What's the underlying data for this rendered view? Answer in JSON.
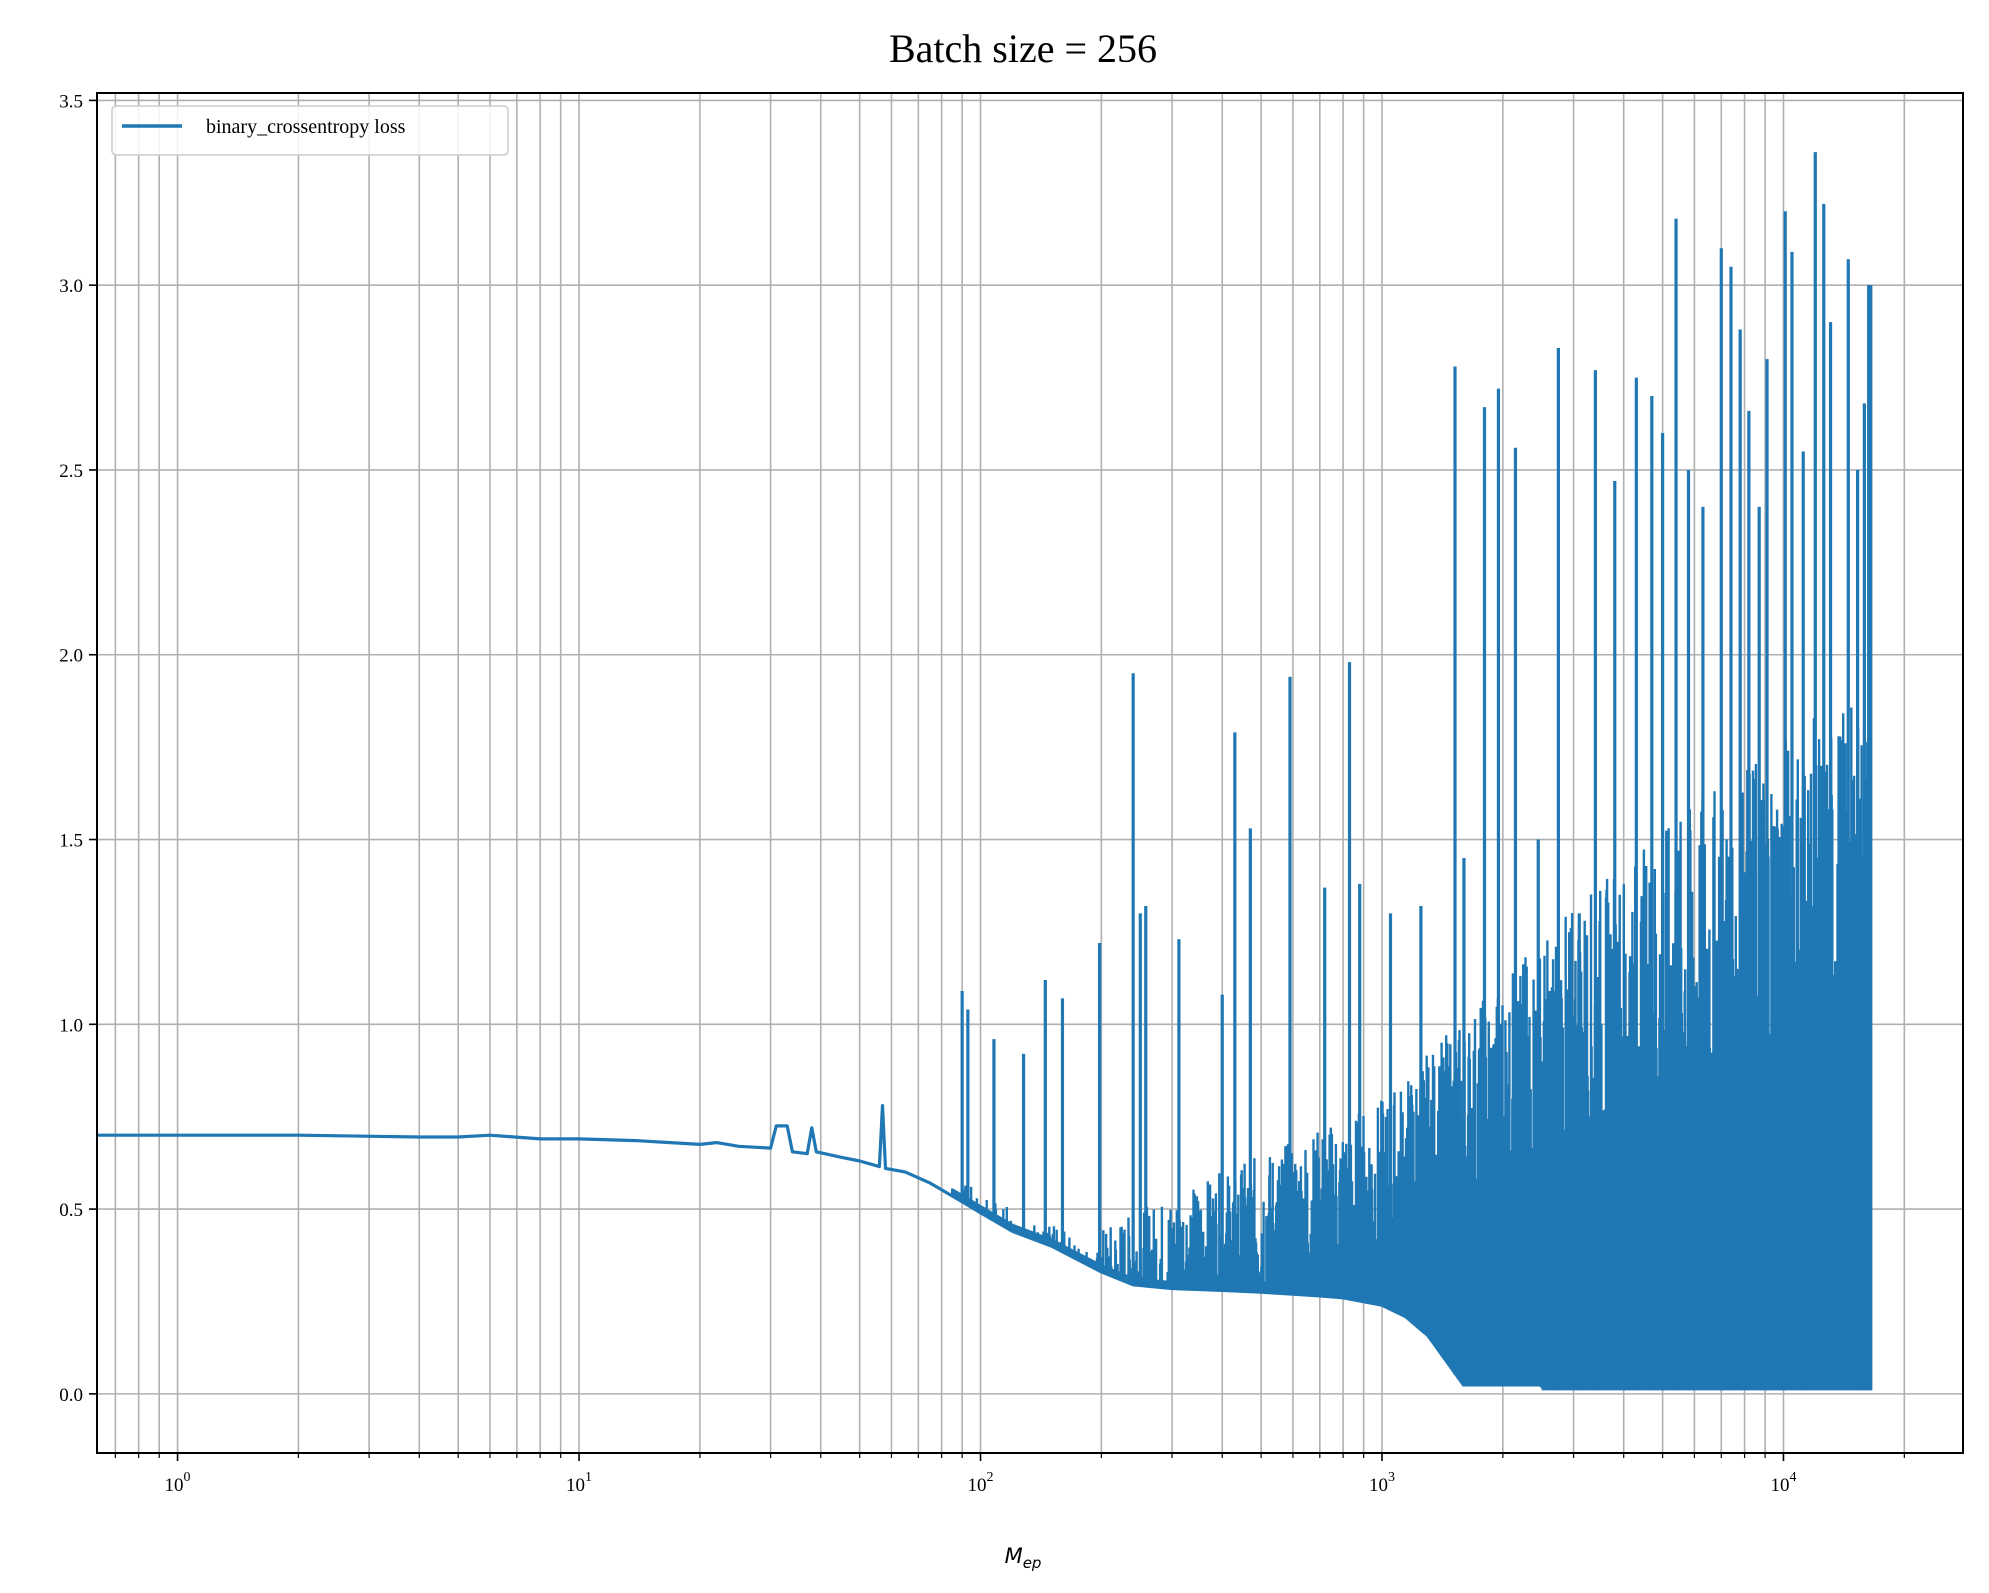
{
  "chart_data": {
    "type": "line",
    "title": "Batch size = 256",
    "xlabel": {
      "base": "M",
      "subscript": "ep"
    },
    "ylabel": "",
    "xscale": "log",
    "xlim": [
      0.63,
      28000
    ],
    "ylim": [
      -0.16,
      3.52
    ],
    "grid": true,
    "legend_position": "top-left",
    "xticks": [
      {
        "base": "10",
        "exp": "0",
        "value": 1
      },
      {
        "base": "10",
        "exp": "1",
        "value": 10
      },
      {
        "base": "10",
        "exp": "2",
        "value": 100
      },
      {
        "base": "10",
        "exp": "3",
        "value": 1000
      },
      {
        "base": "10",
        "exp": "4",
        "value": 10000
      }
    ],
    "yticks": [
      {
        "label": "0.0",
        "value": 0.0
      },
      {
        "label": "0.5",
        "value": 0.5
      },
      {
        "label": "1.0",
        "value": 1.0
      },
      {
        "label": "1.5",
        "value": 1.5
      },
      {
        "label": "2.0",
        "value": 2.0
      },
      {
        "label": "2.5",
        "value": 2.5
      },
      {
        "label": "3.0",
        "value": 3.0
      },
      {
        "label": "3.5",
        "value": 3.5
      }
    ],
    "series": [
      {
        "name": "binary_crossentropy loss",
        "color": "#1f77b4",
        "trend_points": [
          [
            0.63,
            0.7
          ],
          [
            1,
            0.7
          ],
          [
            2,
            0.7
          ],
          [
            4,
            0.695
          ],
          [
            5,
            0.695
          ],
          [
            6,
            0.7
          ],
          [
            8,
            0.69
          ],
          [
            10,
            0.69
          ],
          [
            14,
            0.685
          ],
          [
            20,
            0.675
          ],
          [
            22,
            0.68
          ],
          [
            25,
            0.67
          ],
          [
            30,
            0.665
          ],
          [
            31,
            0.725
          ],
          [
            33,
            0.725
          ],
          [
            34,
            0.655
          ],
          [
            37,
            0.65
          ],
          [
            38,
            0.72
          ],
          [
            39,
            0.655
          ],
          [
            45,
            0.64
          ],
          [
            50,
            0.63
          ],
          [
            56,
            0.615
          ],
          [
            57,
            0.78
          ],
          [
            58,
            0.61
          ],
          [
            65,
            0.6
          ],
          [
            75,
            0.57
          ],
          [
            90,
            0.52
          ],
          [
            100,
            0.49
          ],
          [
            120,
            0.44
          ],
          [
            150,
            0.4
          ],
          [
            200,
            0.33
          ],
          [
            240,
            0.295
          ],
          [
            300,
            0.285
          ],
          [
            400,
            0.28
          ],
          [
            500,
            0.275
          ],
          [
            600,
            0.27
          ],
          [
            700,
            0.265
          ],
          [
            800,
            0.26
          ],
          [
            1000,
            0.24
          ],
          [
            1300,
            0.18
          ],
          [
            1600,
            0.08
          ],
          [
            2000,
            0.04
          ],
          [
            3000,
            0.025
          ],
          [
            5000,
            0.02
          ],
          [
            10000,
            0.015
          ],
          [
            16500,
            0.015
          ]
        ],
        "spikes": [
          [
            90,
            1.09
          ],
          [
            93,
            1.04
          ],
          [
            108,
            0.96
          ],
          [
            128,
            0.92
          ],
          [
            145,
            1.12
          ],
          [
            160,
            1.07
          ],
          [
            198,
            1.22
          ],
          [
            240,
            1.95
          ],
          [
            250,
            1.3
          ],
          [
            258,
            1.32
          ],
          [
            312,
            1.23
          ],
          [
            400,
            1.08
          ],
          [
            430,
            1.79
          ],
          [
            470,
            1.53
          ],
          [
            590,
            1.94
          ],
          [
            720,
            1.37
          ],
          [
            830,
            1.98
          ],
          [
            880,
            1.38
          ],
          [
            1050,
            1.3
          ],
          [
            1250,
            1.32
          ],
          [
            1520,
            2.78
          ],
          [
            1600,
            1.45
          ],
          [
            1800,
            2.67
          ],
          [
            1950,
            2.72
          ],
          [
            2150,
            2.56
          ],
          [
            2450,
            1.5
          ],
          [
            2750,
            2.83
          ],
          [
            3100,
            1.3
          ],
          [
            3400,
            2.77
          ],
          [
            3800,
            2.47
          ],
          [
            4300,
            2.75
          ],
          [
            4700,
            2.7
          ],
          [
            5000,
            2.6
          ],
          [
            5400,
            3.18
          ],
          [
            5800,
            2.5
          ],
          [
            6300,
            2.4
          ],
          [
            7000,
            3.1
          ],
          [
            7400,
            3.05
          ],
          [
            7800,
            2.88
          ],
          [
            8200,
            2.66
          ],
          [
            8700,
            2.4
          ],
          [
            9100,
            2.8
          ],
          [
            10100,
            3.2
          ],
          [
            10500,
            3.09
          ],
          [
            11200,
            2.55
          ],
          [
            12000,
            3.36
          ],
          [
            12600,
            3.22
          ],
          [
            13100,
            2.9
          ],
          [
            14500,
            3.07
          ],
          [
            15300,
            2.5
          ],
          [
            15900,
            2.68
          ],
          [
            16300,
            3.0
          ]
        ]
      }
    ]
  }
}
